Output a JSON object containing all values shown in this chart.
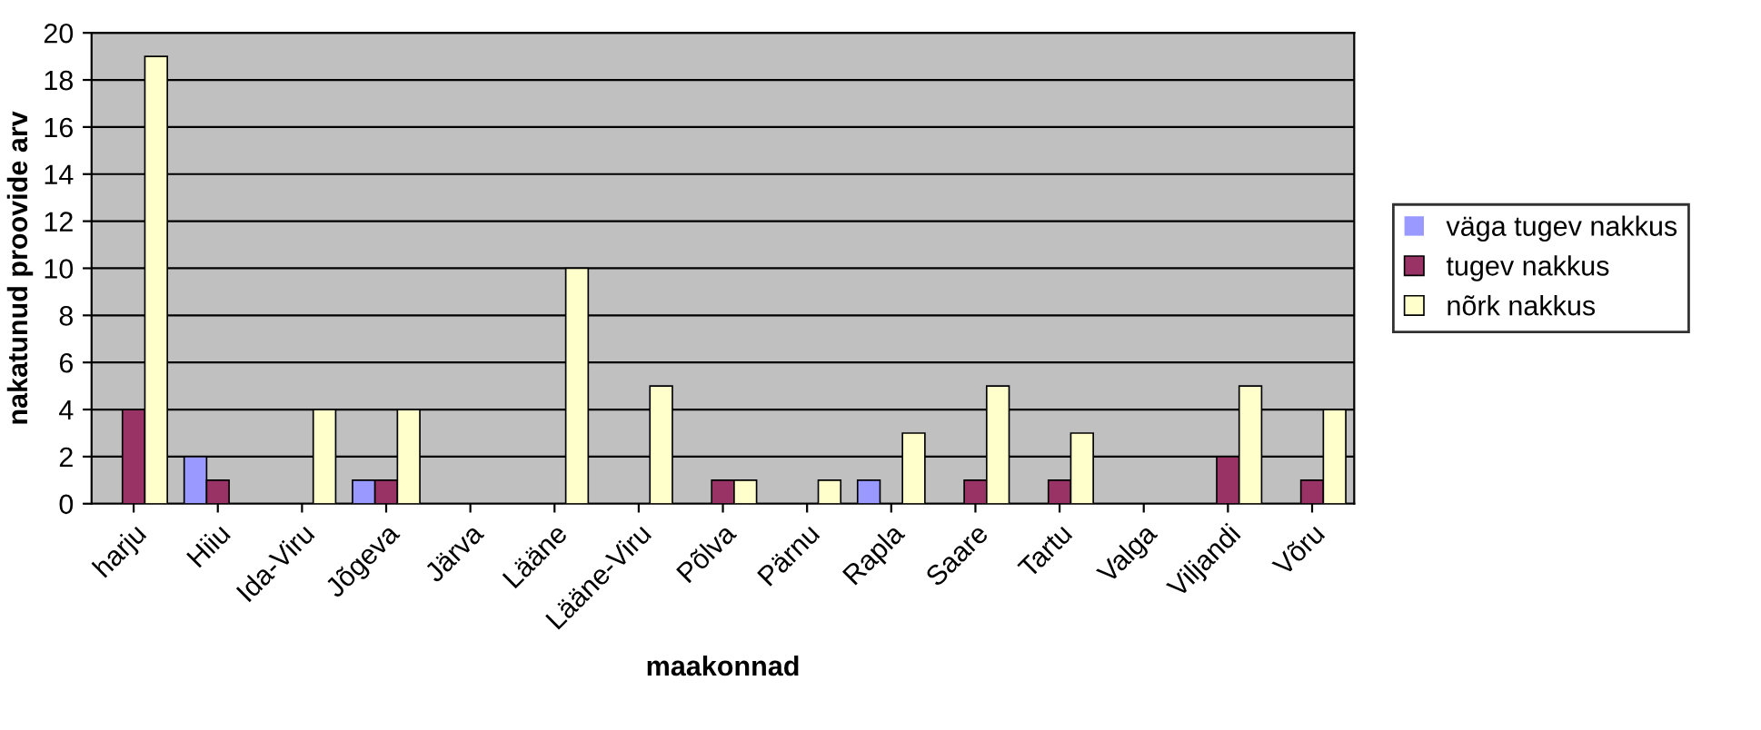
{
  "chart_data": {
    "type": "bar",
    "xlabel": "maakonnad",
    "ylabel": "nakatunud proovide arv",
    "categories": [
      "harju",
      "Hiiu",
      "Ida-Viru",
      "Jõgeva",
      "Järva",
      "Lääne",
      "Lääne-Viru",
      "Põlva",
      "Pärnu",
      "Rapla",
      "Saare",
      "Tartu",
      "Valga",
      "Viljandi",
      "Võru"
    ],
    "series": [
      {
        "name": "väga tugev nakkus",
        "color": "#9999ff",
        "values": [
          0,
          2,
          0,
          1,
          0,
          0,
          0,
          0,
          0,
          1,
          0,
          0,
          0,
          0,
          0
        ]
      },
      {
        "name": "tugev nakkus",
        "color": "#993366",
        "values": [
          4,
          1,
          0,
          1,
          0,
          0,
          0,
          1,
          0,
          0,
          1,
          1,
          0,
          2,
          1
        ]
      },
      {
        "name": "nõrk nakkus",
        "color": "#ffffcc",
        "values": [
          19,
          0,
          4,
          4,
          0,
          10,
          5,
          1,
          1,
          3,
          5,
          3,
          0,
          5,
          4
        ]
      }
    ],
    "ylim": [
      0,
      20
    ],
    "yticks": [
      0,
      2,
      4,
      6,
      8,
      10,
      12,
      14,
      16,
      18,
      20
    ],
    "grid": "y",
    "legend": "right"
  }
}
